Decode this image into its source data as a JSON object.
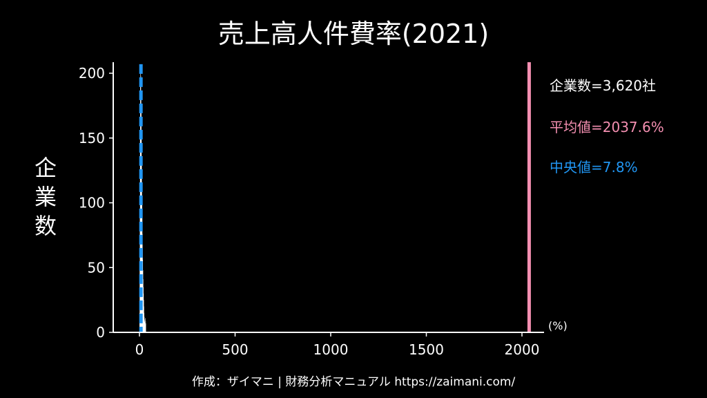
{
  "chart_data": {
    "type": "bar",
    "title": "売上高人件費率(2021)",
    "ylabel": "企業数",
    "xlabel": "",
    "unit_label": "(%)",
    "xlim": [
      -100,
      2100
    ],
    "ylim": [
      0,
      210
    ],
    "x_ticks": [
      0,
      500,
      1000,
      1500,
      2000
    ],
    "x_tick_labels": [
      "0",
      "500",
      "1000",
      "1500",
      "2000"
    ],
    "y_ticks": [
      0,
      50,
      100,
      150,
      200
    ],
    "y_tick_labels": [
      "0",
      "50",
      "100",
      "150",
      "200"
    ],
    "bins": [
      {
        "x": 0,
        "count": 15
      },
      {
        "x": 1,
        "count": 48
      },
      {
        "x": 2,
        "count": 95
      },
      {
        "x": 3,
        "count": 150
      },
      {
        "x": 4,
        "count": 190
      },
      {
        "x": 5,
        "count": 205
      },
      {
        "x": 6,
        "count": 198
      },
      {
        "x": 7,
        "count": 185
      },
      {
        "x": 8,
        "count": 170
      },
      {
        "x": 9,
        "count": 150
      },
      {
        "x": 10,
        "count": 132
      },
      {
        "x": 11,
        "count": 115
      },
      {
        "x": 12,
        "count": 100
      },
      {
        "x": 13,
        "count": 88
      },
      {
        "x": 14,
        "count": 76
      },
      {
        "x": 15,
        "count": 65
      },
      {
        "x": 16,
        "count": 56
      },
      {
        "x": 17,
        "count": 48
      },
      {
        "x": 18,
        "count": 41
      },
      {
        "x": 19,
        "count": 35
      },
      {
        "x": 20,
        "count": 30
      },
      {
        "x": 21,
        "count": 25
      },
      {
        "x": 22,
        "count": 20
      },
      {
        "x": 23,
        "count": 15
      },
      {
        "x": 24,
        "count": 12
      },
      {
        "x": 25,
        "count": 10
      },
      {
        "x": 26,
        "count": 9
      },
      {
        "x": 27,
        "count": 8
      },
      {
        "x": 28,
        "count": 7
      },
      {
        "x": 29,
        "count": 6
      },
      {
        "x": 30,
        "count": 11
      },
      {
        "x": 31,
        "count": 9
      },
      {
        "x": 32,
        "count": 7
      }
    ],
    "mean": 2037.6,
    "median": 7.8,
    "stats": {
      "companies": "企業数=3,620社",
      "mean": "平均値=2037.6%",
      "median": "中央値=7.8%"
    },
    "colors": {
      "background": "#000000",
      "bars": "#ffffff",
      "mean_line": "#f48fb1",
      "median_line": "#2196f3"
    }
  },
  "credit": "作成：ザイマニ | 財務分析マニュアル https://zaimani.com/"
}
